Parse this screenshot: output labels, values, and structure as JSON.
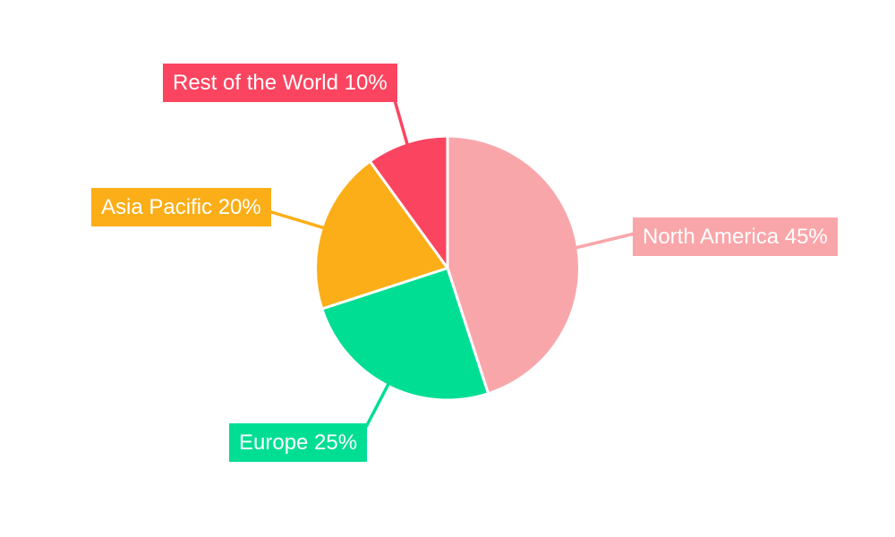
{
  "page": {
    "background_color": "#ffffff",
    "label_text_color": "#ffffff"
  },
  "chart_data": {
    "type": "pie",
    "start_angle_deg": 0,
    "direction": "clockwise",
    "separator_color": "#ffffff",
    "categories": [
      "North America",
      "Europe",
      "Asia Pacific",
      "Rest of the World"
    ],
    "values": [
      45,
      25,
      20,
      10
    ],
    "unit": "%",
    "slices": [
      {
        "name": "North America",
        "value": 45,
        "label": "North America 45%",
        "color": "#F9A6AA"
      },
      {
        "name": "Europe",
        "value": 25,
        "label": "Europe 25%",
        "color": "#00DE94"
      },
      {
        "name": "Asia Pacific",
        "value": 20,
        "label": "Asia Pacific 20%",
        "color": "#FBAE17"
      },
      {
        "name": "Rest of the World",
        "value": 10,
        "label": "Rest of the World 10%",
        "color": "#FB4560"
      }
    ]
  }
}
